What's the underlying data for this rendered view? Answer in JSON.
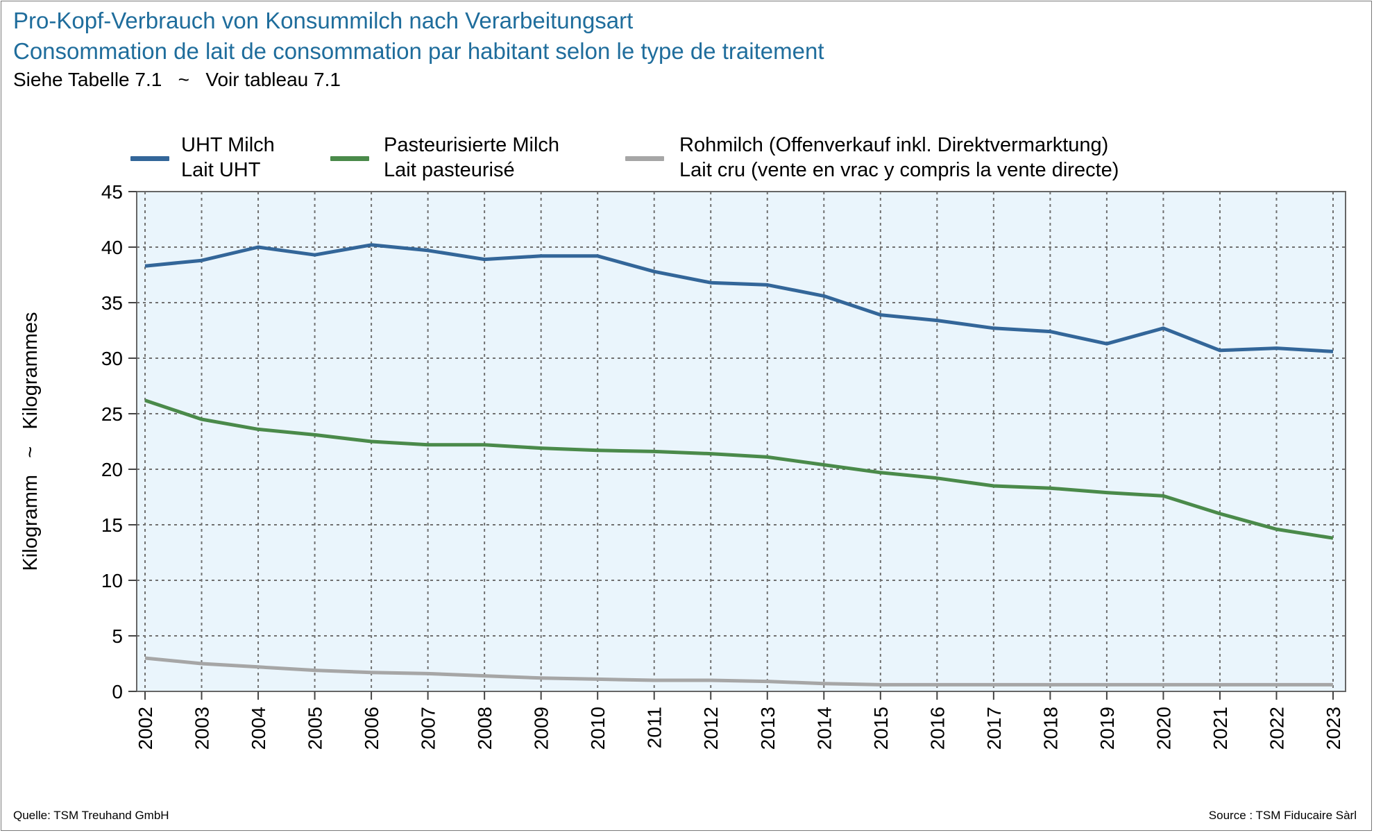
{
  "header": {
    "title_de": "Pro-Kopf-Verbrauch von Konsummilch nach Verarbeitungsart",
    "title_fr": "Consommation de lait de consommation par habitant selon le type de traitement",
    "subtitle": "Siehe Tabelle 7.1   ~   Voir tableau 7.1"
  },
  "footer": {
    "source_left": "Quelle: TSM Treuhand GmbH",
    "source_right": "Source : TSM Fiducaire Sàrl"
  },
  "legend": [
    {
      "line1": "UHT Milch",
      "line2": "Lait UHT",
      "color": "#336699"
    },
    {
      "line1": "Pasteurisierte Milch",
      "line2": "Lait pasteurisé",
      "color": "#4a8a4a"
    },
    {
      "line1": "Rohmilch (Offenverkauf inkl. Direktvermarktung)",
      "line2": "Lait cru (vente en vrac y compris la vente directe)",
      "color": "#a6a6a6"
    }
  ],
  "chart_data": {
    "type": "line",
    "title": "Pro-Kopf-Verbrauch von Konsummilch nach Verarbeitungsart",
    "xlabel": "",
    "ylabel": "Kilogramm   ~   Kilogrammes",
    "ylim": [
      0,
      45
    ],
    "yticks": [
      0,
      5,
      10,
      15,
      20,
      25,
      30,
      35,
      40,
      45
    ],
    "grid": true,
    "legend_position": "top",
    "plot_background": "#eaf5fc",
    "x": [
      "2002",
      "2003",
      "2004",
      "2005",
      "2006",
      "2007",
      "2008",
      "2009",
      "2010",
      "2011",
      "2012",
      "2013",
      "2014",
      "2015",
      "2016",
      "2017",
      "2018",
      "2019",
      "2020",
      "2021",
      "2022",
      "2023"
    ],
    "series": [
      {
        "name": "UHT Milch / Lait UHT",
        "color": "#336699",
        "values": [
          38.3,
          38.8,
          40.0,
          39.3,
          40.2,
          39.7,
          38.9,
          39.2,
          39.2,
          37.8,
          36.8,
          36.6,
          35.6,
          33.9,
          33.4,
          32.7,
          32.4,
          31.3,
          32.7,
          30.7,
          30.9,
          30.6
        ]
      },
      {
        "name": "Pasteurisierte Milch / Lait pasteurisé",
        "color": "#4a8a4a",
        "values": [
          26.2,
          24.5,
          23.6,
          23.1,
          22.5,
          22.2,
          22.2,
          21.9,
          21.7,
          21.6,
          21.4,
          21.1,
          20.4,
          19.7,
          19.2,
          18.5,
          18.3,
          17.9,
          17.6,
          16.0,
          14.6,
          13.8
        ]
      },
      {
        "name": "Rohmilch (Offenverkauf inkl. Direktvermarktung) / Lait cru (vente en vrac y compris la vente directe)",
        "color": "#a6a6a6",
        "values": [
          3.0,
          2.5,
          2.2,
          1.9,
          1.7,
          1.6,
          1.4,
          1.2,
          1.1,
          1.0,
          1.0,
          0.9,
          0.7,
          0.6,
          0.6,
          0.6,
          0.6,
          0.6,
          0.6,
          0.6,
          0.6,
          0.6
        ]
      }
    ]
  }
}
